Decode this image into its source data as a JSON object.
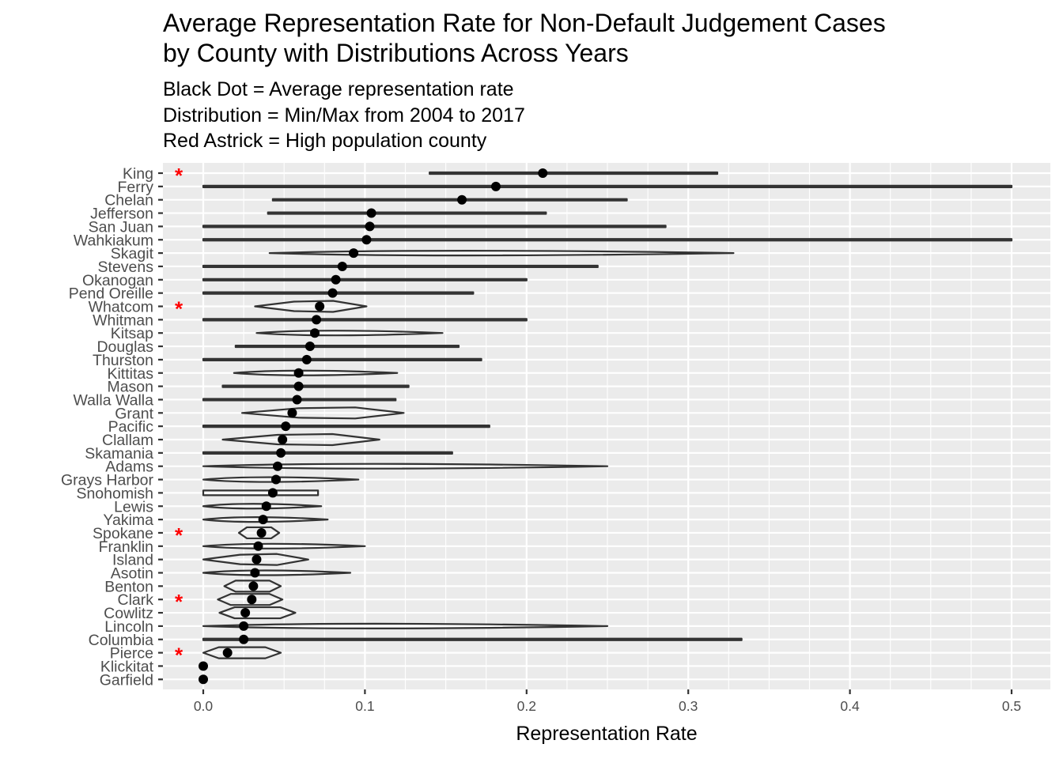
{
  "chart_data": {
    "type": "violin",
    "title": [
      "Average Representation Rate for Non-Default Judgement Cases",
      "by County with Distributions Across Years"
    ],
    "subtitle": [
      "Black Dot = Average representation rate",
      "Distribution = Min/Max from 2004 to 2017",
      "Red Astrick = High population county"
    ],
    "xlabel": "Representation Rate",
    "ylabel": "",
    "xlim": [
      -0.025,
      0.525
    ],
    "x_ticks": [
      "0.0",
      "0.1",
      "0.2",
      "0.3",
      "0.4",
      "0.5"
    ],
    "x_tick_values": [
      0,
      0.1,
      0.2,
      0.3,
      0.4,
      0.5
    ],
    "grid": true,
    "background": "#ebebeb",
    "violin_color": "#333333",
    "dot_color": "#000000",
    "star_color": "#ff0000",
    "high_population_marker": "*",
    "counties": [
      {
        "name": "King",
        "avg": 0.21,
        "min": 0.14,
        "max": 0.318,
        "high_pop": true,
        "shape": "thin"
      },
      {
        "name": "Ferry",
        "avg": 0.181,
        "min": 0.0,
        "max": 0.5,
        "high_pop": false,
        "shape": "thin"
      },
      {
        "name": "Chelan",
        "avg": 0.16,
        "min": 0.043,
        "max": 0.262,
        "high_pop": false,
        "shape": "thin"
      },
      {
        "name": "Jefferson",
        "avg": 0.104,
        "min": 0.04,
        "max": 0.212,
        "high_pop": false,
        "shape": "thin"
      },
      {
        "name": "San Juan",
        "avg": 0.103,
        "min": 0.0,
        "max": 0.286,
        "high_pop": false,
        "shape": "thin"
      },
      {
        "name": "Wahkiakum",
        "avg": 0.101,
        "min": 0.0,
        "max": 0.5,
        "high_pop": false,
        "shape": "thin"
      },
      {
        "name": "Skagit",
        "avg": 0.093,
        "min": 0.041,
        "max": 0.328,
        "high_pop": false,
        "shape": "lens"
      },
      {
        "name": "Stevens",
        "avg": 0.086,
        "min": 0.0,
        "max": 0.244,
        "high_pop": false,
        "shape": "thin"
      },
      {
        "name": "Okanogan",
        "avg": 0.082,
        "min": 0.0,
        "max": 0.2,
        "high_pop": false,
        "shape": "thin"
      },
      {
        "name": "Pend Oreille",
        "avg": 0.08,
        "min": 0.0,
        "max": 0.167,
        "high_pop": false,
        "shape": "thin"
      },
      {
        "name": "Whatcom",
        "avg": 0.072,
        "min": 0.032,
        "max": 0.101,
        "high_pop": true,
        "shape": "wide"
      },
      {
        "name": "Whitman",
        "avg": 0.07,
        "min": 0.0,
        "max": 0.2,
        "high_pop": false,
        "shape": "thin"
      },
      {
        "name": "Kitsap",
        "avg": 0.069,
        "min": 0.033,
        "max": 0.148,
        "high_pop": false,
        "shape": "lens"
      },
      {
        "name": "Douglas",
        "avg": 0.066,
        "min": 0.02,
        "max": 0.158,
        "high_pop": false,
        "shape": "thin"
      },
      {
        "name": "Thurston",
        "avg": 0.064,
        "min": 0.0,
        "max": 0.172,
        "high_pop": false,
        "shape": "thin"
      },
      {
        "name": "Kittitas",
        "avg": 0.059,
        "min": 0.019,
        "max": 0.12,
        "high_pop": false,
        "shape": "lens"
      },
      {
        "name": "Mason",
        "avg": 0.059,
        "min": 0.012,
        "max": 0.127,
        "high_pop": false,
        "shape": "thin"
      },
      {
        "name": "Walla Walla",
        "avg": 0.058,
        "min": 0.0,
        "max": 0.119,
        "high_pop": false,
        "shape": "thin"
      },
      {
        "name": "Grant",
        "avg": 0.055,
        "min": 0.024,
        "max": 0.124,
        "high_pop": false,
        "shape": "wide"
      },
      {
        "name": "Pacific",
        "avg": 0.051,
        "min": 0.0,
        "max": 0.177,
        "high_pop": false,
        "shape": "thin"
      },
      {
        "name": "Clallam",
        "avg": 0.049,
        "min": 0.012,
        "max": 0.109,
        "high_pop": false,
        "shape": "wide"
      },
      {
        "name": "Skamania",
        "avg": 0.048,
        "min": 0.0,
        "max": 0.154,
        "high_pop": false,
        "shape": "thin"
      },
      {
        "name": "Adams",
        "avg": 0.046,
        "min": 0.0,
        "max": 0.25,
        "high_pop": false,
        "shape": "lens"
      },
      {
        "name": "Grays Harbor",
        "avg": 0.045,
        "min": 0.0,
        "max": 0.096,
        "high_pop": false,
        "shape": "lens"
      },
      {
        "name": "Snohomish",
        "avg": 0.043,
        "min": 0.0,
        "max": 0.071,
        "high_pop": false,
        "shape": "box"
      },
      {
        "name": "Lewis",
        "avg": 0.039,
        "min": 0.0,
        "max": 0.073,
        "high_pop": false,
        "shape": "lens"
      },
      {
        "name": "Yakima",
        "avg": 0.037,
        "min": 0.0,
        "max": 0.077,
        "high_pop": false,
        "shape": "lens"
      },
      {
        "name": "Spokane",
        "avg": 0.036,
        "min": 0.022,
        "max": 0.047,
        "high_pop": true,
        "shape": "hex"
      },
      {
        "name": "Franklin",
        "avg": 0.034,
        "min": 0.0,
        "max": 0.1,
        "high_pop": false,
        "shape": "lens"
      },
      {
        "name": "Island",
        "avg": 0.033,
        "min": 0.0,
        "max": 0.065,
        "high_pop": false,
        "shape": "wide"
      },
      {
        "name": "Asotin",
        "avg": 0.032,
        "min": 0.0,
        "max": 0.091,
        "high_pop": false,
        "shape": "lens"
      },
      {
        "name": "Benton",
        "avg": 0.031,
        "min": 0.013,
        "max": 0.048,
        "high_pop": false,
        "shape": "hex"
      },
      {
        "name": "Clark",
        "avg": 0.03,
        "min": 0.009,
        "max": 0.049,
        "high_pop": true,
        "shape": "hex"
      },
      {
        "name": "Cowlitz",
        "avg": 0.026,
        "min": 0.01,
        "max": 0.057,
        "high_pop": false,
        "shape": "hex"
      },
      {
        "name": "Lincoln",
        "avg": 0.025,
        "min": 0.0,
        "max": 0.25,
        "high_pop": false,
        "shape": "lens"
      },
      {
        "name": "Columbia",
        "avg": 0.025,
        "min": 0.0,
        "max": 0.333,
        "high_pop": false,
        "shape": "thin"
      },
      {
        "name": "Pierce",
        "avg": 0.015,
        "min": 0.0,
        "max": 0.048,
        "high_pop": true,
        "shape": "hex"
      },
      {
        "name": "Klickitat",
        "avg": 0.0,
        "min": 0.0,
        "max": 0.0,
        "high_pop": false,
        "shape": "none"
      },
      {
        "name": "Garfield",
        "avg": 0.0,
        "min": 0.0,
        "max": 0.0,
        "high_pop": false,
        "shape": "none"
      }
    ]
  }
}
